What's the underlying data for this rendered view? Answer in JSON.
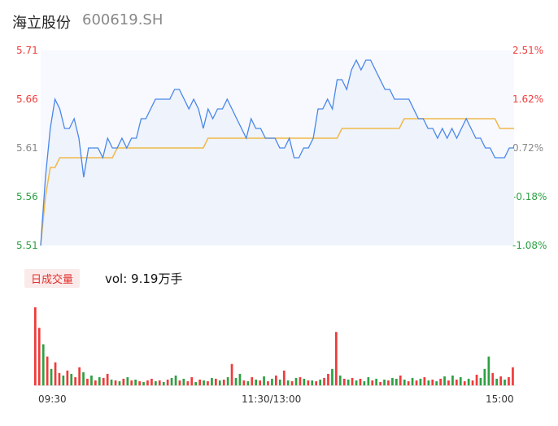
{
  "header": {
    "title": "海立股份",
    "code": "600619.SH"
  },
  "volume_panel": {
    "badge": "日成交量",
    "text": "vol: 9.19万手"
  },
  "colors": {
    "price_line": "#4a87e8",
    "avg_line": "#f0b94a",
    "up": "#ef3b3b",
    "down": "#2ea043",
    "neutral": "#888888"
  },
  "chart_data": {
    "type": "line",
    "title": "",
    "price_ticks": [
      "5.71",
      "5.66",
      "5.61",
      "5.56",
      "5.51"
    ],
    "pct_ticks": [
      "2.51%",
      "1.62%",
      "0.72%",
      "-0.18%",
      "-1.08%"
    ],
    "time_ticks": [
      "09:30",
      "11:30/13:00",
      "15:00"
    ],
    "ylim": [
      5.51,
      5.71
    ],
    "series": [
      {
        "values": [
          5.51,
          5.58,
          5.63,
          5.66,
          5.65,
          5.63,
          5.63,
          5.64,
          5.62,
          5.58,
          5.61,
          5.61,
          5.61,
          5.6,
          5.62,
          5.61,
          5.61,
          5.62,
          5.61,
          5.62,
          5.62,
          5.64,
          5.64,
          5.65,
          5.66,
          5.66,
          5.66,
          5.66,
          5.67,
          5.67,
          5.66,
          5.65,
          5.66,
          5.65,
          5.63,
          5.65,
          5.64,
          5.65,
          5.65,
          5.66,
          5.65,
          5.64,
          5.63,
          5.62,
          5.64,
          5.63,
          5.63,
          5.62,
          5.62,
          5.62,
          5.61,
          5.61,
          5.62,
          5.6,
          5.6,
          5.61,
          5.61,
          5.62,
          5.65,
          5.65,
          5.66,
          5.65,
          5.68,
          5.68,
          5.67,
          5.69,
          5.7,
          5.69,
          5.7,
          5.7,
          5.69,
          5.68,
          5.67,
          5.67,
          5.66,
          5.66,
          5.66,
          5.66,
          5.65,
          5.64,
          5.64,
          5.63,
          5.63,
          5.62,
          5.63,
          5.62,
          5.63,
          5.62,
          5.63,
          5.64,
          5.63,
          5.62,
          5.62,
          5.61,
          5.61,
          5.6,
          5.6,
          5.6,
          5.61,
          5.61
        ]
      },
      {
        "values": [
          5.51,
          5.56,
          5.59,
          5.59,
          5.6,
          5.6,
          5.6,
          5.6,
          5.6,
          5.6,
          5.6,
          5.6,
          5.6,
          5.6,
          5.6,
          5.6,
          5.61,
          5.61,
          5.61,
          5.61,
          5.61,
          5.61,
          5.61,
          5.61,
          5.61,
          5.61,
          5.61,
          5.61,
          5.61,
          5.61,
          5.61,
          5.61,
          5.61,
          5.61,
          5.61,
          5.62,
          5.62,
          5.62,
          5.62,
          5.62,
          5.62,
          5.62,
          5.62,
          5.62,
          5.62,
          5.62,
          5.62,
          5.62,
          5.62,
          5.62,
          5.62,
          5.62,
          5.62,
          5.62,
          5.62,
          5.62,
          5.62,
          5.62,
          5.62,
          5.62,
          5.62,
          5.62,
          5.62,
          5.63,
          5.63,
          5.63,
          5.63,
          5.63,
          5.63,
          5.63,
          5.63,
          5.63,
          5.63,
          5.63,
          5.63,
          5.63,
          5.64,
          5.64,
          5.64,
          5.64,
          5.64,
          5.64,
          5.64,
          5.64,
          5.64,
          5.64,
          5.64,
          5.64,
          5.64,
          5.64,
          5.64,
          5.64,
          5.64,
          5.64,
          5.64,
          5.64,
          5.63,
          5.63,
          5.63,
          5.63
        ]
      }
    ],
    "volume": {
      "values": [
        95,
        70,
        50,
        35,
        20,
        28,
        15,
        12,
        18,
        14,
        10,
        22,
        16,
        8,
        12,
        6,
        10,
        9,
        14,
        7,
        6,
        5,
        8,
        10,
        6,
        7,
        5,
        4,
        6,
        8,
        5,
        6,
        4,
        7,
        9,
        12,
        6,
        8,
        5,
        10,
        4,
        7,
        6,
        5,
        9,
        8,
        6,
        7,
        10,
        26,
        9,
        14,
        6,
        5,
        10,
        7,
        6,
        11,
        5,
        8,
        12,
        7,
        18,
        6,
        5,
        9,
        10,
        8,
        6,
        6,
        5,
        7,
        9,
        14,
        20,
        65,
        12,
        8,
        7,
        9,
        6,
        8,
        5,
        10,
        6,
        8,
        4,
        7,
        6,
        9,
        8,
        12,
        7,
        5,
        9,
        6,
        8,
        10,
        6,
        7,
        5,
        8,
        11,
        6,
        12,
        7,
        10,
        5,
        8,
        6,
        13,
        9,
        20,
        35,
        15,
        8,
        11,
        7,
        10,
        22
      ],
      "up": [
        true,
        true,
        false,
        true,
        false,
        true,
        true,
        false,
        true,
        false,
        true,
        true,
        false,
        true,
        false,
        true,
        false,
        true,
        true,
        false,
        true,
        false,
        true,
        false,
        true,
        false,
        true,
        false,
        true,
        true,
        false,
        true,
        false,
        true,
        false,
        false,
        true,
        false,
        true,
        true,
        false,
        true,
        false,
        true,
        false,
        true,
        false,
        true,
        false,
        true,
        false,
        false,
        true,
        false,
        true,
        false,
        true,
        false,
        true,
        false,
        true,
        false,
        true,
        false,
        true,
        false,
        true,
        false,
        true,
        false,
        true,
        false,
        true,
        true,
        false,
        true,
        false,
        true,
        false,
        true,
        false,
        true,
        false,
        false,
        true,
        false,
        true,
        false,
        true,
        false,
        false,
        true,
        false,
        true,
        false,
        true,
        false,
        true,
        false,
        true,
        false,
        true,
        false,
        true,
        false,
        true,
        false,
        true,
        false,
        true,
        true,
        false,
        false,
        false,
        true,
        false,
        true,
        false,
        true,
        true
      ]
    }
  }
}
